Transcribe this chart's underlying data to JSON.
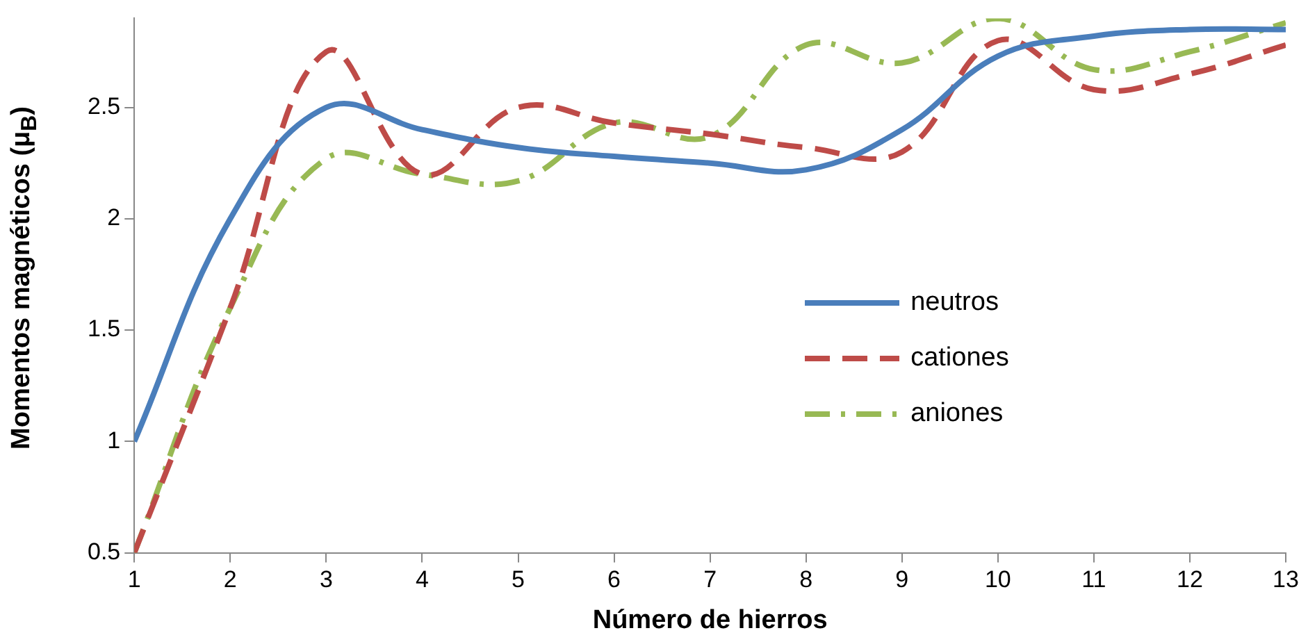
{
  "chart_data": {
    "type": "line",
    "xlabel": "Número de hierros",
    "ylabel": "Momentos magnéticos  (μ$_{B}$)",
    "x": [
      1,
      2,
      3,
      4,
      5,
      6,
      7,
      8,
      9,
      10,
      11,
      12,
      13
    ],
    "xlim": [
      1,
      13
    ],
    "xticks": [
      1,
      2,
      3,
      4,
      5,
      6,
      7,
      8,
      9,
      10,
      11,
      12,
      13
    ],
    "ylim": [
      0.5,
      2.9
    ],
    "yticks": [
      0.5,
      1,
      1.5,
      2,
      2.5
    ],
    "grid": false,
    "legend": "right",
    "marker": "none",
    "series": [
      {
        "name": "neutros",
        "color": "#4a7ebb",
        "line_style": "solid",
        "values": [
          1.0,
          2.0,
          2.5,
          2.4,
          2.32,
          2.28,
          2.25,
          2.22,
          2.4,
          2.73,
          2.82,
          2.85,
          2.85
        ]
      },
      {
        "name": "cationes",
        "color": "#be4b48",
        "line_style": "dashed",
        "values": [
          0.5,
          1.6,
          2.75,
          2.2,
          2.5,
          2.43,
          2.38,
          2.32,
          2.3,
          2.8,
          2.58,
          2.65,
          2.78
        ]
      },
      {
        "name": "aniones",
        "color": "#98b954",
        "line_style": "dashdot",
        "values": [
          0.5,
          1.6,
          2.27,
          2.2,
          2.17,
          2.43,
          2.37,
          2.78,
          2.7,
          2.9,
          2.67,
          2.75,
          2.88
        ]
      }
    ]
  }
}
